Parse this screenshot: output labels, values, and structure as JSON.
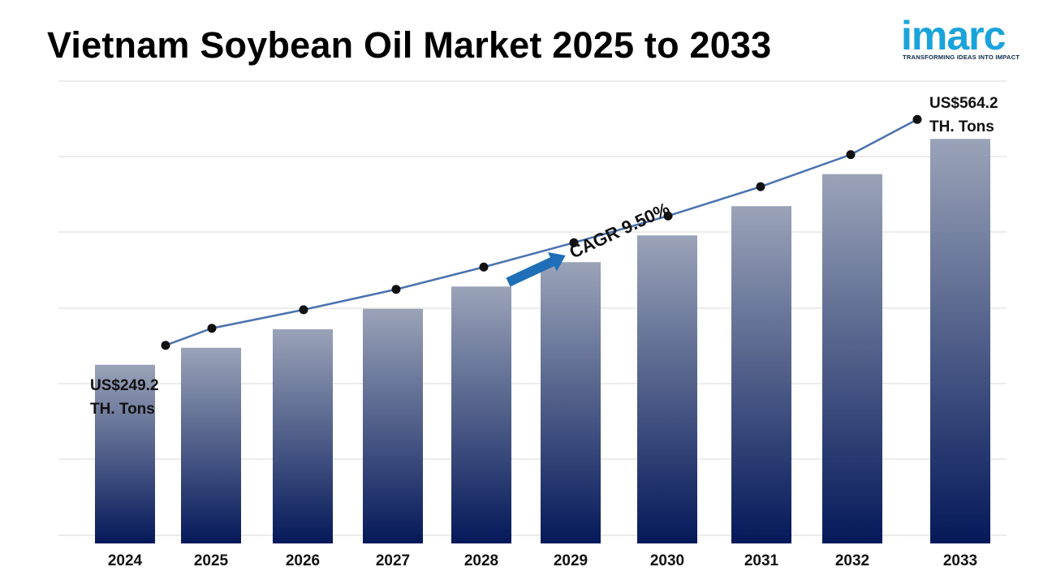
{
  "header": {
    "title": "Vietnam Soybean Oil Market 2025 to 2033"
  },
  "logo": {
    "word": "imarc",
    "tagline": "TRANSFORMING IDEAS INTO IMPACT"
  },
  "chart_data": {
    "type": "bar",
    "categories": [
      "2024",
      "2025",
      "2026",
      "2027",
      "2028",
      "2029",
      "2030",
      "2031",
      "2032",
      "2033"
    ],
    "values": [
      249.2,
      272.9,
      298.8,
      327.2,
      358.3,
      392.3,
      429.6,
      470.4,
      515.1,
      564.2
    ],
    "unit": "TH. Tons",
    "start_label": [
      "US$249.2",
      "TH. Tons"
    ],
    "end_label": [
      "US$564.2",
      "TH. Tons"
    ],
    "annotation": "CAGR 9.50%",
    "title": "",
    "xlabel": "",
    "ylabel": "",
    "ylim": [
      0,
      600
    ],
    "grid": true,
    "legend": "none",
    "colors": {
      "bar_top": "#9aa3b8",
      "bar_bottom": "#05195a",
      "line": "#4a72b0",
      "marker": "#111111",
      "arrow": "#1f6fb8",
      "grid": "#d9d9d9"
    }
  }
}
